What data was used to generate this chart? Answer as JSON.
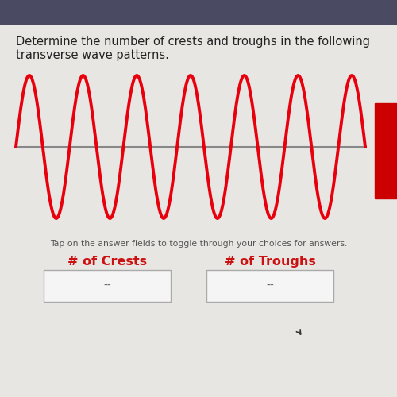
{
  "title_line1": "Determine the number of crests and troughs in the following",
  "title_line2": "transverse wave patterns.",
  "wave_color": "#e8000d",
  "wave_linewidth": 2.8,
  "midline_color": "#888888",
  "midline_linewidth": 2.2,
  "num_cycles": 6.5,
  "amplitude": 1.0,
  "background_color": "#e8e6e3",
  "top_bar_color": "#4a4a62",
  "right_bar_color": "#cc0000",
  "tap_text": "Tap on the answer fields to toggle through your choices for answers.",
  "crests_label": "# of Crests",
  "troughs_label": "# of Troughs",
  "answer_placeholder": "--",
  "box_color": "#f5f5f5",
  "box_border_color": "#aaaaaa",
  "label_color": "#cc1111",
  "tap_text_color": "#555555",
  "title_color": "#222222",
  "title_fontsize": 10.5,
  "tap_fontsize": 7.8,
  "label_fontsize": 11.5,
  "answer_fontsize": 10
}
